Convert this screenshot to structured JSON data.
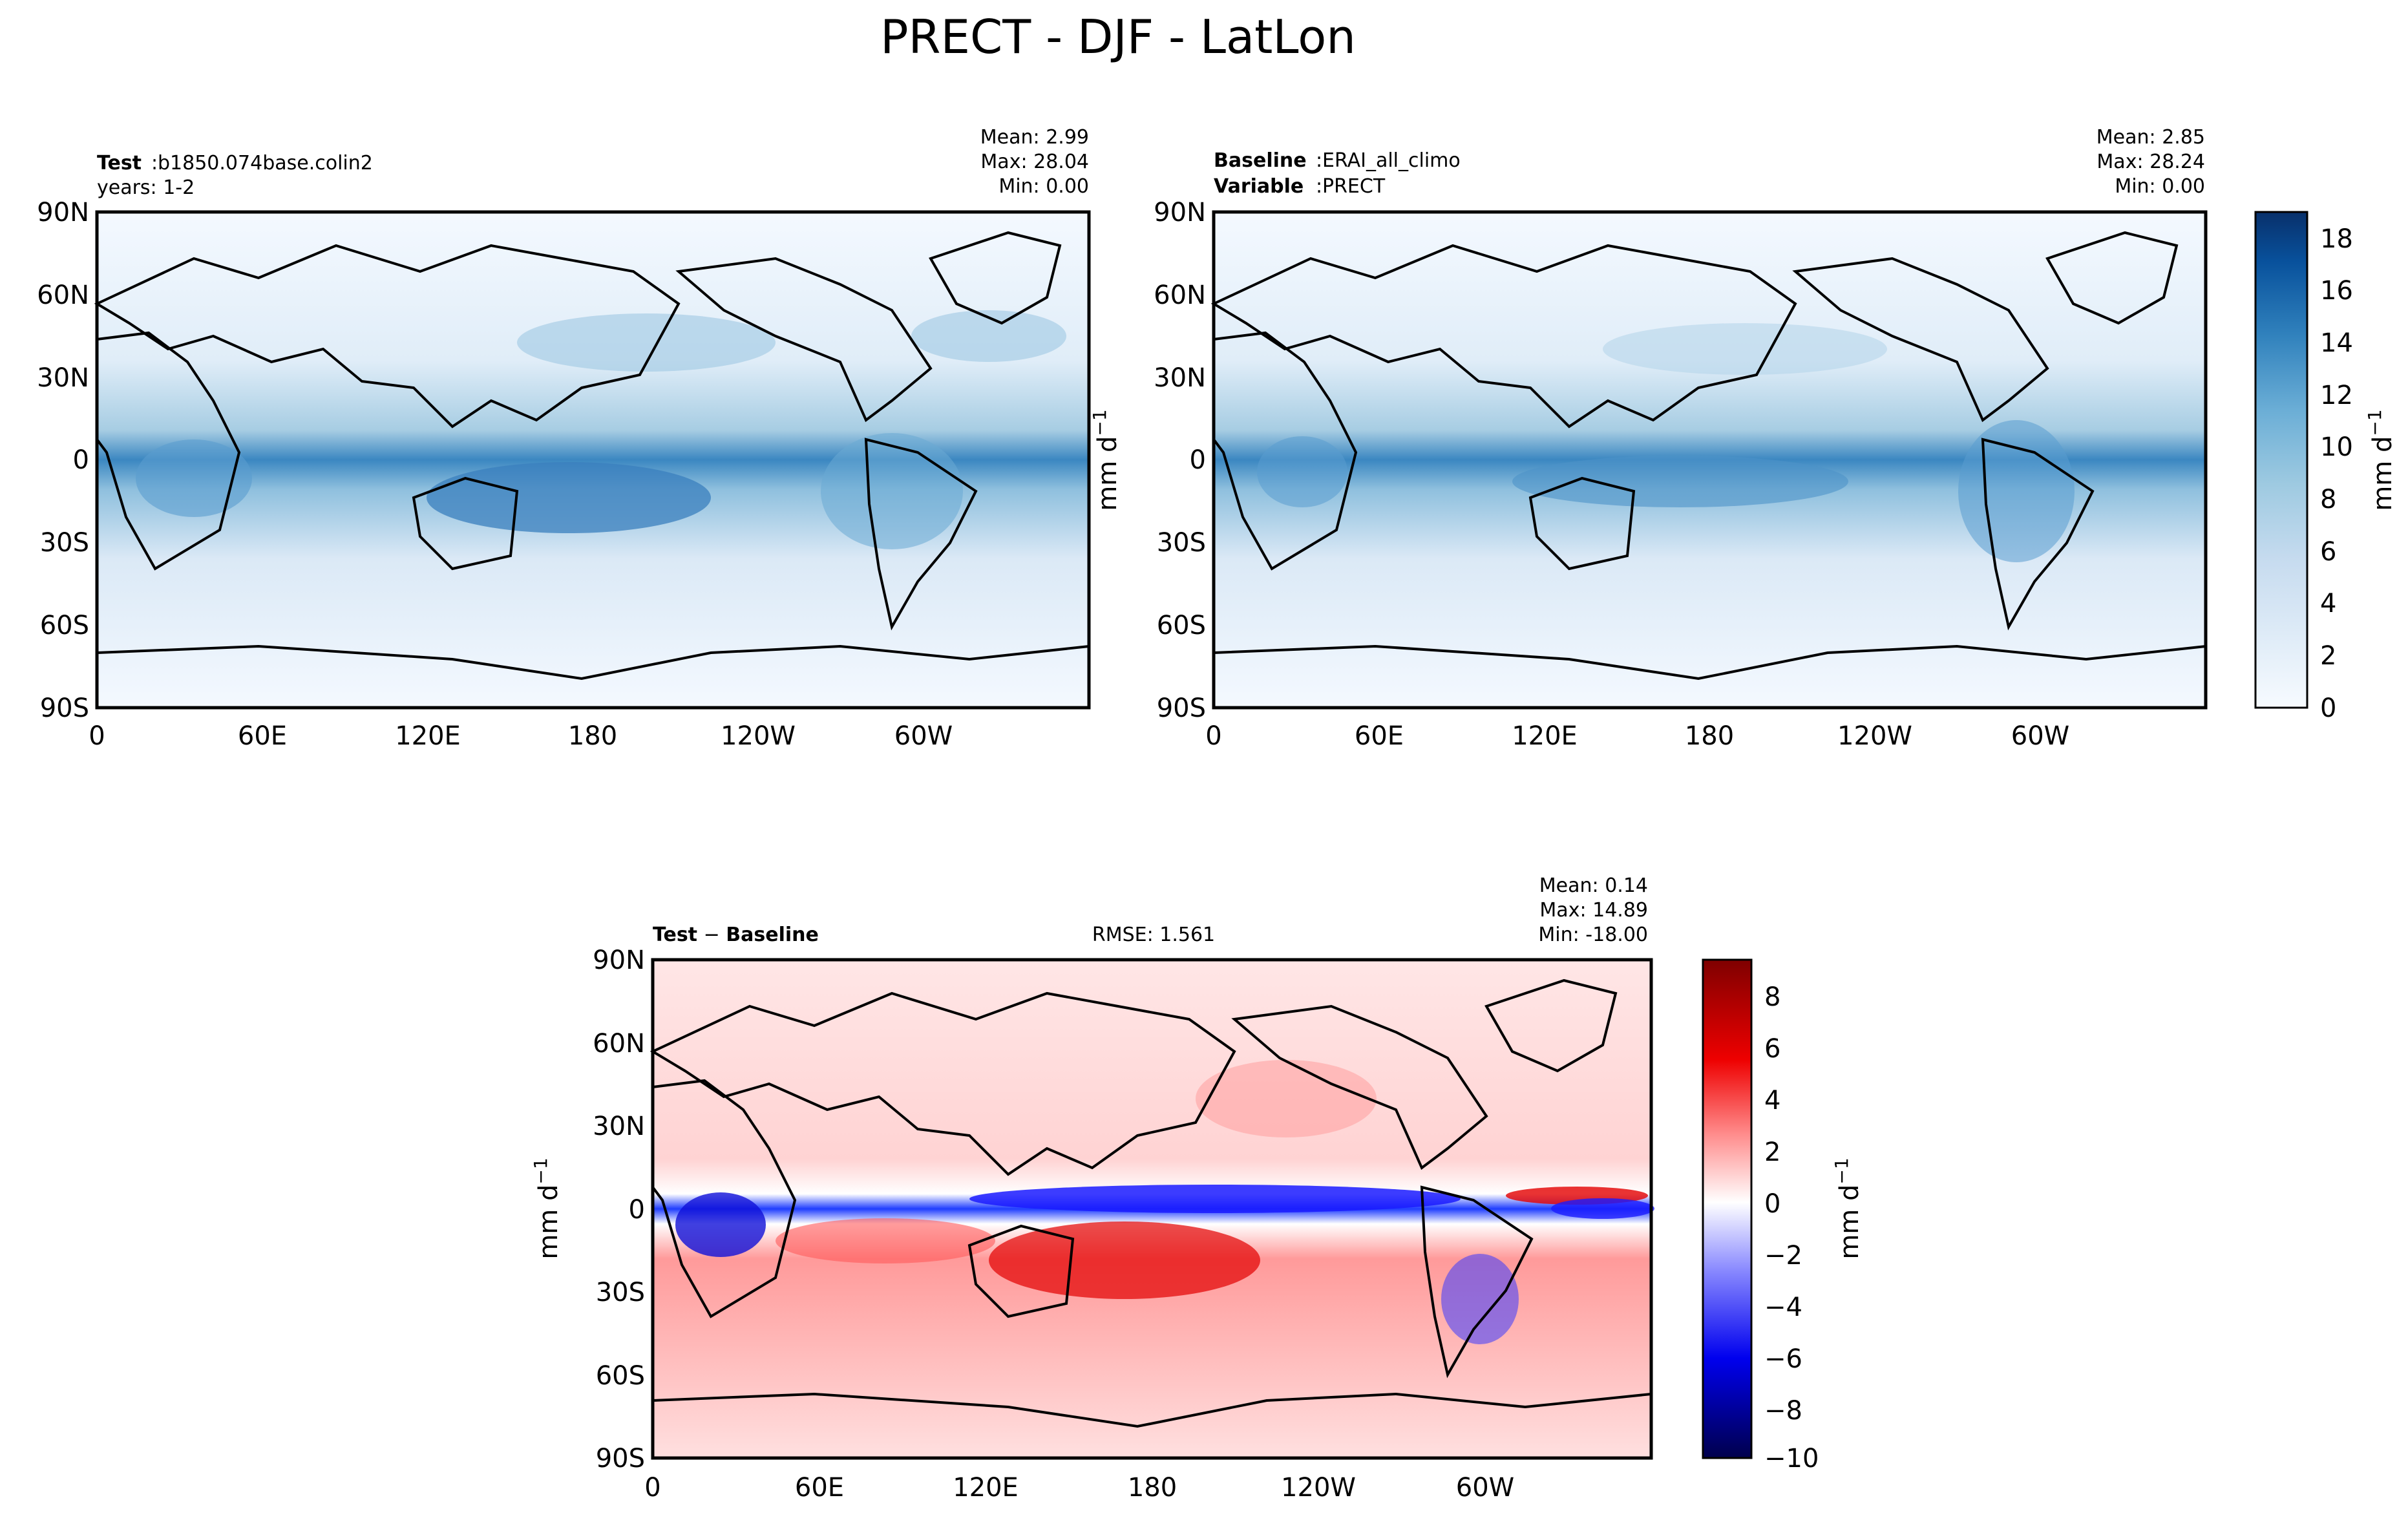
{
  "figure": {
    "title": "PRECT - DJF - LatLon"
  },
  "panels": {
    "test": {
      "label_bold": "Test",
      "label_value": "b1850.074base.colin2",
      "line2": "years: 1-2",
      "mean_label": "Mean:",
      "mean": "2.99",
      "max_label": "Max:",
      "max": "28.04",
      "min_label": "Min:",
      "min": "0.00"
    },
    "baseline": {
      "label_bold": "Baseline",
      "label_value": "ERAI_all_climo",
      "var_bold": "Variable",
      "var_value": "PRECT",
      "mean_label": "Mean:",
      "mean": "2.85",
      "max_label": "Max:",
      "max": "28.24",
      "min_label": "Min:",
      "min": "0.00"
    },
    "diff": {
      "label_bold1": "Test",
      "label_minus": "−",
      "label_bold2": "Baseline",
      "rmse": "RMSE: 1.561",
      "mean_label": "Mean:",
      "mean": "0.14",
      "max_label": "Max:",
      "max": "14.89",
      "min_label": "Min:",
      "min": "-18.00"
    }
  },
  "chart_data": [
    {
      "type": "heatmap",
      "name": "Test",
      "lon_ticks": [
        "0",
        "60E",
        "120E",
        "180",
        "120W",
        "60W"
      ],
      "lat_ticks": [
        "90N",
        "60N",
        "30N",
        "0",
        "30S",
        "60S",
        "90S"
      ],
      "lon_range": [
        0,
        360
      ],
      "lat_range": [
        -90,
        90
      ],
      "colormap": "Blues",
      "zlim": [
        0,
        19
      ],
      "stats": {
        "mean": 2.99,
        "max": 28.04,
        "min": 0.0
      }
    },
    {
      "type": "heatmap",
      "name": "Baseline",
      "lon_ticks": [
        "0",
        "60E",
        "120E",
        "180",
        "120W",
        "60W"
      ],
      "lat_ticks": [
        "90N",
        "60N",
        "30N",
        "0",
        "30S",
        "60S",
        "90S"
      ],
      "lon_range": [
        0,
        360
      ],
      "lat_range": [
        -90,
        90
      ],
      "colormap": "Blues",
      "zlim": [
        0,
        19
      ],
      "colorbar_ticks": [
        "0",
        "2",
        "4",
        "6",
        "8",
        "10",
        "12",
        "14",
        "16",
        "18"
      ],
      "colorbar_label": "mm d",
      "colorbar_label_sup": "−1",
      "stats": {
        "mean": 2.85,
        "max": 28.24,
        "min": 0.0
      }
    },
    {
      "type": "heatmap",
      "name": "Test - Baseline",
      "lon_ticks": [
        "0",
        "60E",
        "120E",
        "180",
        "120W",
        "60W"
      ],
      "lat_ticks": [
        "90N",
        "60N",
        "30N",
        "0",
        "30S",
        "60S",
        "90S"
      ],
      "lon_range": [
        0,
        360
      ],
      "lat_range": [
        -90,
        90
      ],
      "colormap": "seismic",
      "zlim": [
        -10,
        9.5
      ],
      "colorbar_ticks": [
        "8",
        "6",
        "4",
        "2",
        "0",
        "−2",
        "−4",
        "−6",
        "−8",
        "−10"
      ],
      "colorbar_label": "mm d",
      "colorbar_label_sup": "−1",
      "rmse": 1.561,
      "stats": {
        "mean": 0.14,
        "max": 14.89,
        "min": -18.0
      }
    }
  ],
  "colors": {
    "blues_low": "#f7fbff",
    "blues_high": "#08306b",
    "seismic_neg": "#00004c",
    "seismic_pos": "#7f0000",
    "seismic_mid": "#ffffff"
  }
}
